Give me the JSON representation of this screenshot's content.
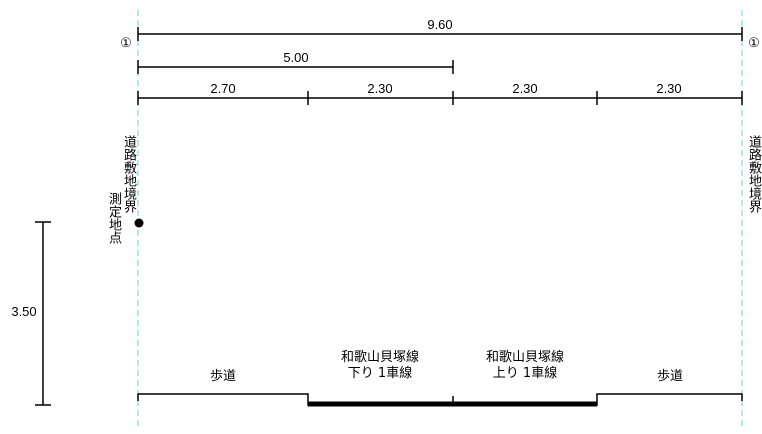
{
  "dimensions": {
    "total": "9.60",
    "partial": "5.00",
    "segments": [
      "2.70",
      "2.30",
      "2.30",
      "2.30"
    ],
    "height": "3.50"
  },
  "markers": {
    "left": "①",
    "right": "①"
  },
  "labels": {
    "left_boundary": "道路敷地境界",
    "measurement_point": "測定地点",
    "right_boundary": "道路敷地境界",
    "sidewalk_left": "歩道",
    "sidewalk_right": "歩道",
    "lane_down_line1": "和歌山貝塚線",
    "lane_down_line2": "下り 1車線",
    "lane_up_line1": "和歌山貝塚線",
    "lane_up_line2": "上り 1車線"
  },
  "colors": {
    "boundary_line": "#5bd6e6",
    "ink": "#000000"
  }
}
